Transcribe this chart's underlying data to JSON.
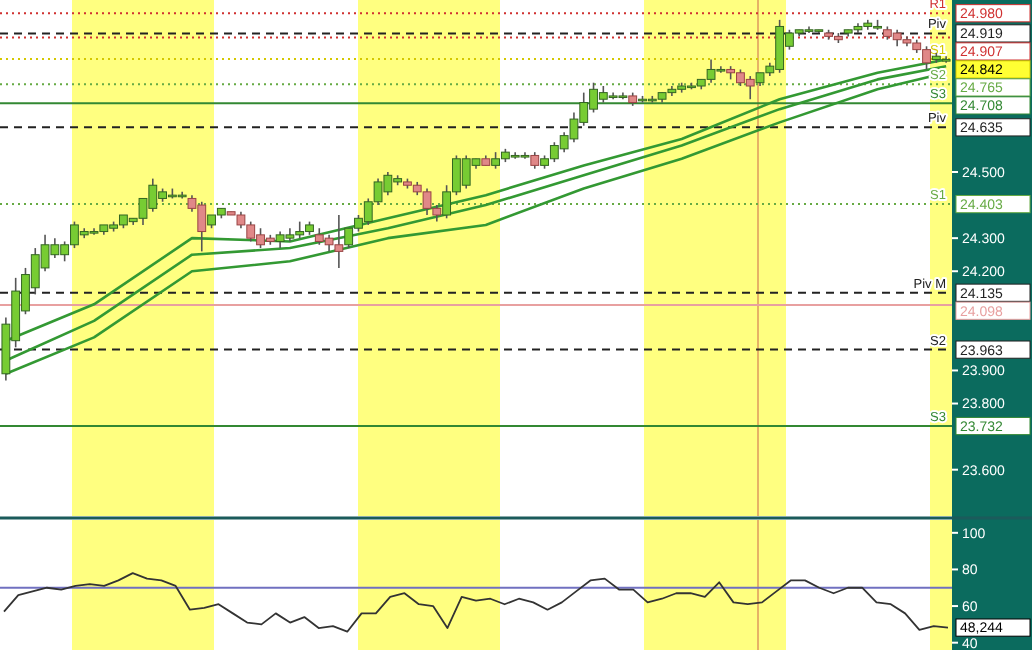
{
  "chart_data": [
    {
      "type": "candlestick",
      "categories": [
        null,
        null,
        null,
        null,
        null,
        null,
        null,
        null,
        null,
        null,
        null,
        null,
        null,
        null,
        null,
        null,
        null,
        null,
        null,
        null,
        null,
        null,
        null,
        null,
        null,
        null,
        null,
        null,
        null,
        null,
        null,
        null,
        null,
        null,
        null,
        null,
        null,
        null,
        null,
        null,
        null,
        null,
        null,
        null,
        null,
        null,
        null,
        null,
        null,
        null,
        null,
        null,
        null,
        null,
        null,
        null,
        null,
        null,
        null,
        null,
        null,
        null,
        null,
        null,
        null,
        null,
        null,
        null,
        null,
        null,
        null,
        null,
        null,
        null,
        null,
        null,
        null,
        null,
        null,
        null,
        null,
        null,
        null,
        null,
        null,
        null,
        null,
        null,
        null,
        null,
        null,
        null,
        null,
        null,
        null,
        null,
        null
      ],
      "ohlc": [
        [
          23.89,
          24.06,
          23.87,
          24.04
        ],
        [
          23.99,
          24.18,
          23.97,
          24.14
        ],
        [
          24.08,
          24.21,
          24.07,
          24.19
        ],
        [
          24.15,
          24.27,
          24.13,
          24.25
        ],
        [
          24.21,
          24.31,
          24.2,
          24.28
        ],
        [
          24.25,
          24.3,
          24.24,
          24.28
        ],
        [
          24.25,
          24.29,
          24.23,
          24.28
        ],
        [
          24.28,
          24.35,
          24.27,
          24.34
        ],
        [
          24.31,
          24.33,
          24.3,
          24.32
        ],
        [
          24.32,
          24.33,
          24.31,
          24.32
        ],
        [
          24.32,
          24.34,
          24.31,
          24.34
        ],
        [
          24.33,
          24.35,
          24.32,
          24.34
        ],
        [
          24.34,
          24.37,
          24.33,
          24.37
        ],
        [
          24.35,
          24.36,
          24.34,
          24.36
        ],
        [
          24.36,
          24.42,
          24.34,
          24.42
        ],
        [
          24.39,
          24.48,
          24.38,
          24.46
        ],
        [
          24.42,
          24.45,
          24.41,
          24.44
        ],
        [
          24.43,
          24.45,
          24.42,
          24.43
        ],
        [
          24.43,
          24.44,
          24.42,
          24.43
        ],
        [
          24.42,
          24.43,
          24.38,
          24.39
        ],
        [
          24.4,
          24.41,
          24.26,
          24.32
        ],
        [
          24.34,
          24.37,
          24.33,
          24.37
        ],
        [
          24.37,
          24.39,
          24.36,
          24.39
        ],
        [
          24.38,
          24.38,
          24.37,
          24.37
        ],
        [
          24.37,
          24.38,
          24.33,
          24.34
        ],
        [
          24.34,
          24.35,
          24.29,
          24.3
        ],
        [
          24.31,
          24.33,
          24.27,
          24.28
        ],
        [
          24.3,
          24.31,
          24.28,
          24.29
        ],
        [
          24.29,
          24.32,
          24.27,
          24.31
        ],
        [
          24.3,
          24.33,
          24.29,
          24.31
        ],
        [
          24.31,
          24.35,
          24.3,
          24.32
        ],
        [
          24.32,
          24.35,
          24.31,
          24.34
        ],
        [
          24.31,
          24.33,
          24.28,
          24.29
        ],
        [
          24.3,
          24.31,
          24.26,
          24.28
        ],
        [
          24.28,
          24.37,
          24.21,
          24.26
        ],
        [
          24.28,
          24.33,
          24.27,
          24.33
        ],
        [
          24.33,
          24.37,
          24.32,
          24.36
        ],
        [
          24.35,
          24.42,
          24.34,
          24.41
        ],
        [
          24.41,
          24.48,
          24.4,
          24.47
        ],
        [
          24.44,
          24.5,
          24.43,
          24.49
        ],
        [
          24.47,
          24.49,
          24.46,
          24.48
        ],
        [
          24.47,
          24.48,
          24.45,
          24.46
        ],
        [
          24.46,
          24.47,
          24.43,
          24.44
        ],
        [
          24.44,
          24.45,
          24.37,
          24.39
        ],
        [
          24.39,
          24.4,
          24.35,
          24.37
        ],
        [
          24.37,
          24.46,
          24.36,
          24.44
        ],
        [
          24.44,
          24.55,
          24.43,
          24.54
        ],
        [
          24.46,
          24.55,
          24.45,
          24.54
        ],
        [
          24.52,
          24.54,
          24.51,
          24.54
        ],
        [
          24.54,
          24.55,
          24.52,
          24.52
        ],
        [
          24.52,
          24.56,
          24.51,
          24.54
        ],
        [
          24.54,
          24.57,
          24.53,
          24.56
        ],
        [
          24.55,
          24.56,
          24.54,
          24.55
        ],
        [
          24.55,
          24.56,
          24.54,
          24.55
        ],
        [
          24.55,
          24.56,
          24.51,
          24.52
        ],
        [
          24.52,
          24.55,
          24.51,
          24.54
        ],
        [
          24.54,
          24.59,
          24.53,
          24.58
        ],
        [
          24.57,
          24.62,
          24.56,
          24.61
        ],
        [
          24.6,
          24.68,
          24.59,
          24.66
        ],
        [
          24.65,
          24.74,
          24.64,
          24.71
        ],
        [
          24.69,
          24.77,
          24.68,
          24.75
        ],
        [
          24.72,
          24.76,
          24.71,
          24.74
        ],
        [
          24.73,
          24.74,
          24.72,
          24.73
        ],
        [
          24.73,
          24.74,
          24.72,
          24.73
        ],
        [
          24.73,
          24.74,
          24.7,
          24.71
        ],
        [
          24.72,
          24.73,
          24.71,
          24.72
        ],
        [
          24.72,
          24.73,
          24.71,
          24.72
        ],
        [
          24.72,
          24.74,
          24.71,
          24.74
        ],
        [
          24.74,
          24.76,
          24.73,
          24.75
        ],
        [
          24.75,
          24.77,
          24.74,
          24.76
        ],
        [
          24.76,
          24.77,
          24.75,
          24.76
        ],
        [
          24.76,
          24.78,
          24.75,
          24.78
        ],
        [
          24.78,
          24.84,
          24.77,
          24.81
        ],
        [
          24.81,
          24.82,
          24.8,
          24.81
        ],
        [
          24.81,
          24.82,
          24.78,
          24.8
        ],
        [
          24.8,
          24.81,
          24.76,
          24.77
        ],
        [
          24.78,
          24.79,
          24.72,
          24.76
        ],
        [
          24.77,
          24.8,
          24.76,
          24.8
        ],
        [
          24.8,
          24.83,
          24.79,
          24.82
        ],
        [
          24.81,
          24.96,
          24.8,
          24.94
        ],
        [
          24.88,
          24.93,
          24.87,
          24.92
        ],
        [
          24.92,
          24.93,
          24.91,
          24.93
        ],
        [
          24.93,
          24.94,
          24.92,
          24.93
        ],
        [
          24.93,
          24.93,
          24.92,
          24.93
        ],
        [
          24.92,
          24.93,
          24.9,
          24.91
        ],
        [
          24.91,
          24.92,
          24.89,
          24.9
        ],
        [
          24.92,
          24.93,
          24.91,
          24.93
        ],
        [
          24.93,
          24.95,
          24.92,
          24.94
        ],
        [
          24.94,
          24.96,
          24.93,
          24.95
        ],
        [
          24.94,
          24.96,
          24.93,
          24.94
        ],
        [
          24.93,
          24.94,
          24.9,
          24.91
        ],
        [
          24.92,
          24.93,
          24.88,
          24.9
        ],
        [
          24.9,
          24.91,
          24.88,
          24.89
        ],
        [
          24.89,
          24.9,
          24.86,
          24.87
        ],
        [
          24.87,
          24.88,
          24.81,
          24.83
        ],
        [
          24.84,
          24.86,
          24.83,
          24.85
        ],
        [
          24.84,
          24.85,
          24.83,
          24.84
        ]
      ],
      "series": [
        {
          "type": "line",
          "color": "#339933",
          "values": [
            23.99,
            null,
            null,
            null,
            null,
            null,
            null,
            null,
            null,
            24.1,
            null,
            null,
            null,
            null,
            null,
            null,
            null,
            null,
            null,
            24.3,
            null,
            null,
            null,
            null,
            null,
            null,
            null,
            null,
            null,
            24.29,
            null,
            null,
            null,
            null,
            null,
            null,
            null,
            null,
            null,
            24.36,
            null,
            null,
            null,
            null,
            null,
            null,
            null,
            null,
            null,
            24.43,
            null,
            null,
            null,
            null,
            null,
            null,
            null,
            null,
            null,
            24.52,
            null,
            null,
            null,
            null,
            null,
            null,
            null,
            null,
            null,
            24.6,
            null,
            null,
            null,
            null,
            null,
            null,
            null,
            null,
            null,
            24.72,
            null,
            null,
            null,
            null,
            null,
            null,
            null,
            null,
            null,
            24.8,
            null,
            null,
            null,
            null,
            null,
            null,
            24.84
          ]
        },
        {
          "type": "line",
          "color": "#339933",
          "values": [
            23.93,
            null,
            null,
            null,
            null,
            null,
            null,
            null,
            null,
            24.05,
            null,
            null,
            null,
            null,
            null,
            null,
            null,
            null,
            null,
            24.25,
            null,
            null,
            null,
            null,
            null,
            null,
            null,
            null,
            null,
            24.27,
            null,
            null,
            null,
            null,
            null,
            null,
            null,
            null,
            null,
            24.33,
            null,
            null,
            null,
            null,
            null,
            null,
            null,
            null,
            null,
            24.4,
            null,
            null,
            null,
            null,
            null,
            null,
            null,
            null,
            null,
            24.49,
            null,
            null,
            null,
            null,
            null,
            null,
            null,
            null,
            null,
            24.58,
            null,
            null,
            null,
            null,
            null,
            null,
            null,
            null,
            null,
            24.69,
            null,
            null,
            null,
            null,
            null,
            null,
            null,
            null,
            null,
            24.78,
            null,
            null,
            null,
            null,
            null,
            null,
            24.82
          ]
        },
        {
          "type": "line",
          "color": "#339933",
          "values": [
            23.89,
            null,
            null,
            null,
            null,
            null,
            null,
            null,
            null,
            24.0,
            null,
            null,
            null,
            null,
            null,
            null,
            null,
            null,
            null,
            24.2,
            null,
            null,
            null,
            null,
            null,
            null,
            null,
            null,
            null,
            24.23,
            null,
            null,
            null,
            null,
            null,
            null,
            null,
            null,
            null,
            24.3,
            null,
            null,
            null,
            null,
            null,
            null,
            null,
            null,
            null,
            24.34,
            null,
            null,
            null,
            null,
            null,
            null,
            null,
            null,
            null,
            24.45,
            null,
            null,
            null,
            null,
            null,
            null,
            null,
            null,
            null,
            24.54,
            null,
            null,
            null,
            null,
            null,
            null,
            null,
            null,
            null,
            24.65,
            null,
            null,
            null,
            null,
            null,
            null,
            null,
            null,
            null,
            24.75,
            null,
            null,
            null,
            null,
            null,
            null,
            24.8
          ]
        }
      ],
      "ylim": [
        23.46,
        25.02
      ],
      "yticks": [
        {
          "value": 24.5,
          "label": "24.500"
        },
        {
          "value": 24.3,
          "label": "24.300"
        },
        {
          "value": 24.2,
          "label": "24.200"
        },
        {
          "value": 23.9,
          "label": "23.900"
        },
        {
          "value": 23.8,
          "label": "23.800"
        },
        {
          "value": 23.6,
          "label": "23.600"
        }
      ],
      "tick_labels": "y",
      "ref_lines": [
        {
          "axis": "y",
          "value": 24.98,
          "label": "R1",
          "color": "#d03030",
          "line_style": "dotted"
        },
        {
          "axis": "y",
          "value": 24.919,
          "label": "Piv",
          "color": "#222222",
          "line_style": "dashed"
        },
        {
          "axis": "y",
          "value": 24.907,
          "label": null,
          "color": "#d03030",
          "line_style": "dotted"
        },
        {
          "axis": "y",
          "value": 24.842,
          "label": "S1",
          "color": "#d4c800",
          "line_style": "dotted"
        },
        {
          "axis": "y",
          "value": 24.765,
          "label": "S2",
          "color": "#66aa44",
          "line_style": "dotted"
        },
        {
          "axis": "y",
          "value": 24.708,
          "label": "S3",
          "color": "#338833",
          "line_style": "solid"
        },
        {
          "axis": "y",
          "value": 24.635,
          "label": "Piv",
          "color": "#222222",
          "line_style": "dashed"
        },
        {
          "axis": "y",
          "value": 24.403,
          "label": "S1",
          "color": "#66aa44",
          "line_style": "dotted"
        },
        {
          "axis": "y",
          "value": 24.135,
          "label": "Piv M",
          "color": "#222222",
          "line_style": "dashed"
        },
        {
          "axis": "y",
          "value": 24.098,
          "label": null,
          "color": "#e8a0a0",
          "line_style": "solid"
        },
        {
          "axis": "y",
          "value": 23.963,
          "label": "S2",
          "color": "#222222",
          "line_style": "dashed"
        },
        {
          "axis": "y",
          "value": 23.732,
          "label": "S3",
          "color": "#338833",
          "line_style": "solid"
        }
      ],
      "annotations": [
        "24.980",
        "24.919",
        "24.907",
        "24.842",
        "24.765",
        "24.708",
        "24.635",
        "24.403",
        "24.135",
        "24.098",
        "23.963",
        "23.732"
      ]
    },
    {
      "type": "line",
      "categories": [
        null,
        null,
        null,
        null,
        null,
        null,
        null,
        null,
        null,
        null,
        null,
        null,
        null,
        null,
        null,
        null,
        null,
        null,
        null,
        null,
        null,
        null,
        null,
        null,
        null,
        null,
        null,
        null,
        null,
        null,
        null,
        null,
        null,
        null,
        null,
        null,
        null,
        null,
        null,
        null,
        null,
        null,
        null,
        null,
        null,
        null,
        null,
        null,
        null,
        null,
        null,
        null,
        null,
        null,
        null,
        null,
        null,
        null,
        null,
        null,
        null,
        null,
        null,
        null,
        null,
        null,
        null
      ],
      "series": [
        {
          "color": "#333333",
          "values": [
            57,
            66,
            68,
            70,
            69,
            71,
            72,
            71,
            74,
            78,
            75,
            74,
            71,
            58,
            59,
            61,
            56,
            51,
            50,
            56,
            51,
            54,
            48,
            49,
            46,
            56,
            56,
            65,
            67,
            61,
            60,
            48,
            65,
            63,
            64,
            61,
            64,
            62,
            58,
            62,
            68,
            74,
            75,
            69,
            69,
            62,
            64,
            67,
            67,
            65,
            73,
            62,
            61,
            62,
            68,
            74,
            74,
            70,
            67,
            70,
            70,
            62,
            61,
            56,
            47,
            49,
            48.244
          ]
        }
      ],
      "annotations": [
        "48,244"
      ],
      "ylim": [
        36,
        107
      ],
      "yticks": [
        40,
        60,
        80,
        100
      ],
      "tick_labels": "y",
      "ref_lines": [
        {
          "axis": "y",
          "value": 70,
          "label": null,
          "color": "#7070c0",
          "line_style": "solid"
        }
      ]
    }
  ]
}
